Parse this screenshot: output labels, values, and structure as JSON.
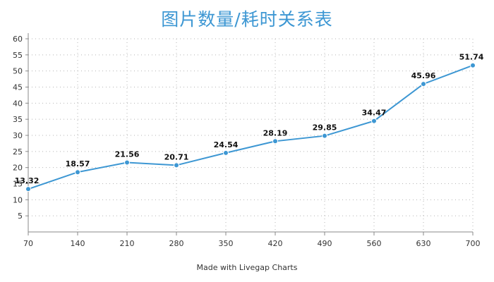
{
  "chart_data": {
    "type": "line",
    "title": "图片数量/耗时关系表",
    "xlabel": "",
    "ylabel": "",
    "x": [
      70,
      140,
      210,
      280,
      350,
      420,
      490,
      560,
      630,
      700
    ],
    "series": [
      {
        "values": [
          13.32,
          18.57,
          21.56,
          20.71,
          24.54,
          28.19,
          29.85,
          34.47,
          45.96,
          51.74
        ],
        "color": "#3d97d3"
      }
    ],
    "yticks": [
      5,
      10,
      15,
      20,
      25,
      30,
      35,
      40,
      45,
      50,
      55,
      60
    ],
    "ylim": [
      0,
      60
    ],
    "grid": true,
    "data_labels": true
  },
  "footer": {
    "credit": "Made with Livegap Charts"
  }
}
